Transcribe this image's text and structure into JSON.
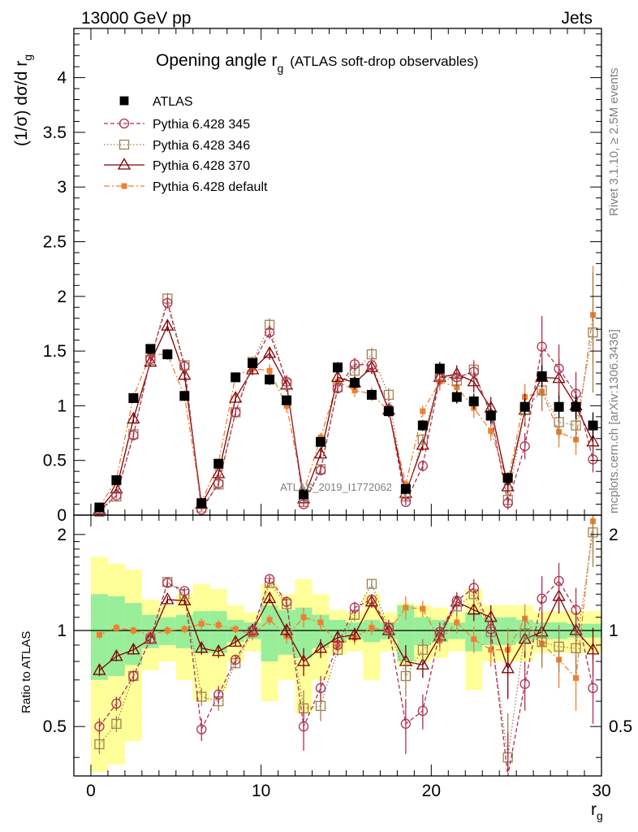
{
  "header": {
    "left": "13000 GeV pp",
    "right": "Jets",
    "watermark": "ATLAS_2019_I1772062",
    "side_rivet": "Rivet 3.1.10, ≥ 2.5M events",
    "side_mcplots": "mcplots.cern.ch [arXiv:1306.3436]"
  },
  "chart_data": {
    "type": "scatter",
    "title": "Opening angle r",
    "title_sub": "g",
    "title_suffix": "(ATLAS soft-drop observables)",
    "ylabel": "(1/σ) dσ/d r",
    "ylabel_sub": "g",
    "xlabel": "r",
    "xlabel_sub": "g",
    "ratio_ylabel": "Ratio to ATLAS",
    "xlim": [
      -1,
      30
    ],
    "ylim_main": [
      0,
      4.45
    ],
    "ylim_ratio": [
      0.35,
      2.3
    ],
    "x_ticks": [
      "0",
      "10",
      "20",
      "30"
    ],
    "y_ticks_main": [
      "0",
      "0.5",
      "1",
      "1.5",
      "2",
      "2.5",
      "3",
      "3.5",
      "4"
    ],
    "y_ticks_ratio": [
      "0.5",
      "1",
      "2"
    ],
    "x": [
      0.5,
      1.5,
      2.5,
      3.5,
      4.5,
      5.5,
      6.5,
      7.5,
      8.5,
      9.5,
      10.5,
      11.5,
      12.5,
      13.5,
      14.5,
      15.5,
      16.5,
      17.5,
      18.5,
      19.5,
      20.5,
      21.5,
      22.5,
      23.5,
      24.5,
      25.5,
      26.5,
      27.5,
      28.5,
      29.5
    ],
    "legend": [
      "ATLAS",
      "Pythia 6.428 345",
      "Pythia 6.428 346",
      "Pythia 6.428 370",
      "Pythia 6.428 default"
    ],
    "series": [
      {
        "name": "ATLAS",
        "color": "#000000",
        "values": [
          0.07,
          0.32,
          1.07,
          1.52,
          1.47,
          1.09,
          0.11,
          0.47,
          1.26,
          1.39,
          1.24,
          1.05,
          0.19,
          0.67,
          1.35,
          1.21,
          1.1,
          0.95,
          0.24,
          0.82,
          1.34,
          1.08,
          1.04,
          0.91,
          0.34,
          0.99,
          1.27,
          0.99,
          0.99,
          0.82
        ],
        "errors": [
          0.01,
          0.02,
          0.04,
          0.04,
          0.04,
          0.04,
          0.01,
          0.03,
          0.04,
          0.04,
          0.05,
          0.04,
          0.02,
          0.04,
          0.05,
          0.05,
          0.05,
          0.05,
          0.03,
          0.05,
          0.06,
          0.06,
          0.07,
          0.07,
          0.05,
          0.08,
          0.1,
          0.1,
          0.11,
          0.12
        ],
        "band_inner": [
          0.3,
          0.28,
          0.22,
          0.12,
          0.1,
          0.12,
          0.15,
          0.15,
          0.08,
          0.06,
          0.2,
          0.16,
          0.18,
          0.12,
          0.08,
          0.06,
          0.08,
          0.06,
          0.2,
          0.1,
          0.08,
          0.06,
          0.14,
          0.1,
          0.1,
          0.08,
          0.06,
          0.06,
          0.05,
          0.05
        ],
        "band_outer": [
          0.7,
          0.62,
          0.55,
          0.25,
          0.2,
          0.3,
          0.4,
          0.35,
          0.2,
          0.14,
          0.4,
          0.3,
          0.45,
          0.3,
          0.16,
          0.14,
          0.3,
          0.14,
          0.22,
          0.2,
          0.18,
          0.14,
          0.35,
          0.2,
          0.2,
          0.2,
          0.15,
          0.15,
          0.15,
          0.15
        ],
        "ratio": [
          1,
          1,
          1,
          1,
          1,
          1,
          1,
          1,
          1,
          1,
          1,
          1,
          1,
          1,
          1,
          1,
          1,
          1,
          1,
          1,
          1,
          1,
          1,
          1,
          1,
          1,
          1,
          1,
          1,
          1
        ]
      },
      {
        "name": "Pythia 6.428 345",
        "color": "#b03050",
        "values": [
          0.04,
          0.18,
          0.73,
          1.43,
          1.94,
          1.36,
          0.05,
          0.29,
          0.94,
          1.38,
          1.67,
          1.22,
          0.1,
          0.41,
          1.16,
          1.38,
          1.37,
          0.97,
          0.12,
          0.45,
          1.26,
          1.26,
          1.31,
          0.92,
          0.11,
          0.63,
          1.54,
          1.34,
          1.11,
          0.51
        ],
        "errors": [
          0.01,
          0.02,
          0.03,
          0.04,
          0.05,
          0.05,
          0.01,
          0.03,
          0.04,
          0.05,
          0.06,
          0.06,
          0.02,
          0.04,
          0.05,
          0.06,
          0.06,
          0.06,
          0.03,
          0.05,
          0.08,
          0.08,
          0.09,
          0.09,
          0.06,
          0.12,
          0.28,
          0.22,
          0.2,
          0.12
        ],
        "ratio": [
          0.5,
          0.59,
          0.72,
          0.94,
          1.41,
          1.33,
          0.49,
          0.63,
          0.81,
          1.0,
          1.45,
          1.23,
          0.5,
          0.66,
          0.9,
          1.18,
          1.25,
          1.02,
          0.51,
          0.56,
          0.99,
          1.24,
          1.36,
          1.01,
          0.33,
          0.68,
          1.26,
          1.43,
          1.16,
          0.66
        ],
        "ratio_err": [
          0.03,
          0.03,
          0.03,
          0.03,
          0.03,
          0.03,
          0.04,
          0.04,
          0.03,
          0.04,
          0.04,
          0.05,
          0.08,
          0.06,
          0.04,
          0.05,
          0.05,
          0.06,
          0.1,
          0.07,
          0.07,
          0.08,
          0.09,
          0.1,
          0.15,
          0.12,
          0.22,
          0.2,
          0.2,
          0.15
        ]
      },
      {
        "name": "Pythia 6.428 346",
        "color": "#a08050",
        "values": [
          0.03,
          0.17,
          0.74,
          1.42,
          1.98,
          1.37,
          0.07,
          0.28,
          0.94,
          1.4,
          1.74,
          1.2,
          0.12,
          0.42,
          1.17,
          1.32,
          1.47,
          1.1,
          0.17,
          0.69,
          1.26,
          1.23,
          1.33,
          0.91,
          0.14,
          0.96,
          1.14,
          0.85,
          0.82,
          1.67
        ],
        "errors": [
          0.01,
          0.02,
          0.03,
          0.04,
          0.05,
          0.05,
          0.01,
          0.03,
          0.04,
          0.05,
          0.06,
          0.06,
          0.02,
          0.04,
          0.05,
          0.06,
          0.06,
          0.06,
          0.03,
          0.05,
          0.08,
          0.08,
          0.09,
          0.09,
          0.06,
          0.12,
          0.18,
          0.15,
          0.15,
          0.55
        ],
        "ratio": [
          0.44,
          0.51,
          0.72,
          0.94,
          1.42,
          1.3,
          0.62,
          0.6,
          0.79,
          0.99,
          1.41,
          1.21,
          0.57,
          0.58,
          0.87,
          1.12,
          1.4,
          1.02,
          0.72,
          0.87,
          0.96,
          1.19,
          1.3,
          0.99,
          0.4,
          0.98,
          0.92,
          0.89,
          0.88,
          2.03
        ],
        "ratio_err": [
          0.03,
          0.03,
          0.03,
          0.03,
          0.03,
          0.03,
          0.04,
          0.04,
          0.03,
          0.04,
          0.04,
          0.05,
          0.08,
          0.06,
          0.04,
          0.05,
          0.05,
          0.06,
          0.1,
          0.07,
          0.07,
          0.08,
          0.09,
          0.1,
          0.15,
          0.12,
          0.15,
          0.15,
          0.15,
          0.45
        ]
      },
      {
        "name": "Pythia 6.428 370",
        "color": "#800000",
        "values": [
          0.05,
          0.24,
          0.88,
          1.4,
          1.73,
          1.28,
          0.1,
          0.38,
          1.07,
          1.33,
          1.48,
          1.19,
          0.15,
          0.56,
          1.26,
          1.21,
          1.35,
          0.96,
          0.2,
          0.64,
          1.26,
          1.29,
          1.22,
          0.98,
          0.26,
          0.96,
          1.26,
          1.25,
          1.0,
          0.67
        ],
        "errors": [
          0.01,
          0.02,
          0.04,
          0.04,
          0.05,
          0.05,
          0.01,
          0.03,
          0.04,
          0.05,
          0.06,
          0.06,
          0.02,
          0.04,
          0.05,
          0.06,
          0.06,
          0.06,
          0.03,
          0.05,
          0.08,
          0.08,
          0.1,
          0.1,
          0.07,
          0.15,
          0.18,
          0.18,
          0.16,
          0.16
        ],
        "ratio": [
          0.75,
          0.83,
          0.87,
          0.94,
          1.25,
          1.24,
          0.88,
          0.86,
          0.92,
          1.0,
          1.26,
          1.0,
          0.8,
          0.88,
          0.95,
          0.97,
          1.23,
          1.0,
          0.8,
          0.78,
          0.96,
          1.23,
          1.16,
          1.1,
          0.76,
          0.94,
          0.99,
          1.28,
          1.0,
          0.87
        ],
        "ratio_err": [
          0.03,
          0.03,
          0.03,
          0.03,
          0.03,
          0.03,
          0.04,
          0.04,
          0.03,
          0.04,
          0.04,
          0.05,
          0.08,
          0.06,
          0.04,
          0.05,
          0.05,
          0.06,
          0.1,
          0.07,
          0.07,
          0.08,
          0.09,
          0.1,
          0.15,
          0.12,
          0.15,
          0.15,
          0.15,
          0.15
        ]
      },
      {
        "name": "Pythia 6.428 default",
        "color": "#f07f30",
        "values": [
          0.07,
          0.33,
          1.08,
          1.47,
          1.47,
          1.09,
          0.12,
          0.48,
          1.27,
          1.34,
          1.32,
          1.0,
          0.21,
          0.71,
          1.22,
          1.14,
          1.11,
          0.95,
          0.28,
          0.95,
          1.22,
          1.17,
          0.98,
          0.77,
          0.3,
          1.08,
          1.13,
          0.76,
          0.69,
          1.83
        ],
        "errors": [
          0.01,
          0.02,
          0.04,
          0.04,
          0.05,
          0.05,
          0.01,
          0.03,
          0.04,
          0.05,
          0.06,
          0.06,
          0.02,
          0.04,
          0.05,
          0.06,
          0.06,
          0.06,
          0.03,
          0.05,
          0.08,
          0.08,
          0.09,
          0.09,
          0.06,
          0.12,
          0.18,
          0.14,
          0.14,
          0.45
        ],
        "ratio": [
          0.97,
          1.02,
          1.0,
          0.97,
          1.0,
          1.01,
          1.05,
          1.04,
          1.01,
          0.97,
          1.08,
          0.96,
          1.1,
          1.06,
          0.9,
          0.95,
          1.02,
          1.0,
          1.18,
          1.17,
          0.93,
          1.06,
          0.94,
          0.87,
          0.87,
          1.09,
          0.91,
          0.81,
          0.71,
          2.2
        ],
        "ratio_err": [
          0.03,
          0.03,
          0.03,
          0.03,
          0.03,
          0.03,
          0.04,
          0.04,
          0.03,
          0.04,
          0.04,
          0.05,
          0.08,
          0.06,
          0.04,
          0.05,
          0.05,
          0.06,
          0.1,
          0.07,
          0.07,
          0.08,
          0.09,
          0.1,
          0.15,
          0.12,
          0.15,
          0.15,
          0.15,
          0.45
        ]
      }
    ]
  }
}
